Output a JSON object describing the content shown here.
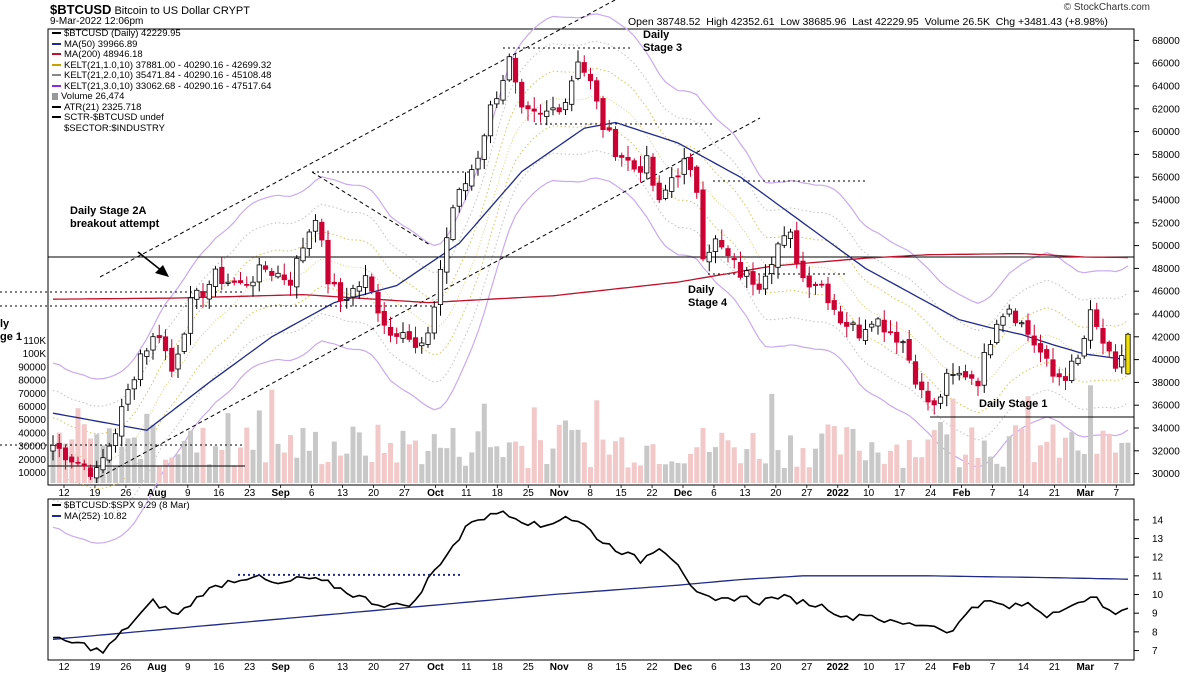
{
  "header": {
    "symbol": "$BTCUSD",
    "name": "Bitcoin to US Dollar",
    "exchange": "CRYPT",
    "date": "9-Mar-2022 12:06pm",
    "watermark": "© StockCharts.com",
    "quote": "Open 38748.52  High 42352.61  Low 38685.96  Last 42229.95  Volume 26.5K  Chg +3481.43 (+8.98%)"
  },
  "legend": [
    {
      "text": "$BTCUSD (Daily) 42229.95",
      "color": "#000000"
    },
    {
      "text": "MA(50) 39966.89",
      "color": "#1f2a8a"
    },
    {
      "text": "MA(200) 48946.18",
      "color": "#c0102a"
    },
    {
      "text": "KELT(21,1.0,10) 37881.00 - 40290.16 - 42699.32",
      "color": "#c8a000"
    },
    {
      "text": "KELT(21,2.0,10) 35471.84 - 40290.16 - 45108.48",
      "color": "#888888"
    },
    {
      "text": "KELT(21,3.0,10) 33062.68 - 40290.16 - 47517.64",
      "color": "#8a2be2"
    },
    {
      "text": "Volume 26,474",
      "color": "#999999"
    },
    {
      "text": "ATR(21) 2325.718",
      "color": "#000000"
    },
    {
      "text": "SCTR-$BTCUSD undef",
      "color": "#000000"
    },
    {
      "text": "$SECTOR:$INDUSTRY",
      "color": "#ffffff"
    }
  ],
  "annotations": {
    "stage2a": [
      "Daily Stage 2A",
      "breakout attempt"
    ],
    "stage3": [
      "Daily",
      "Stage 3"
    ],
    "stage4": [
      "Daily",
      "Stage 4"
    ],
    "stage1_right": "Daily Stage 1",
    "stage1_left": [
      "ly",
      "ge 1"
    ]
  },
  "lower_legend": [
    {
      "text": "$BTCUSD:$SPX 9.29 (8 Mar)",
      "color": "#000000"
    },
    {
      "text": "MA(252) 10.82",
      "color": "#1f2a8a"
    }
  ],
  "chart_data": {
    "type": "candlestick",
    "x_ticks": [
      "12",
      "19",
      "26",
      "Aug",
      "9",
      "16",
      "23",
      "Sep",
      "6",
      "13",
      "20",
      "27",
      "Oct",
      "11",
      "18",
      "25",
      "Nov",
      "8",
      "15",
      "22",
      "Dec",
      "6",
      "13",
      "20",
      "27",
      "2022",
      "10",
      "17",
      "24",
      "Feb",
      "7",
      "14",
      "21",
      "Mar",
      "7"
    ],
    "x_tick_months": [
      "Aug",
      "Sep",
      "Oct",
      "Nov",
      "Dec",
      "2022",
      "Feb",
      "Mar"
    ],
    "y_ticks": [
      30000,
      32000,
      34000,
      36000,
      38000,
      40000,
      42000,
      44000,
      46000,
      48000,
      50000,
      52000,
      54000,
      56000,
      58000,
      60000,
      62000,
      64000,
      66000,
      68000
    ],
    "ylim": [
      29000,
      69000
    ],
    "volume_ticks": [
      "110K",
      "100K",
      "90000",
      "80000",
      "70000",
      "60000",
      "50000",
      "40000",
      "30000",
      "20000",
      "10000"
    ],
    "close_anchors": [
      [
        0,
        32500
      ],
      [
        4,
        31000
      ],
      [
        7,
        30000
      ],
      [
        10,
        33800
      ],
      [
        14,
        40500
      ],
      [
        17,
        42400
      ],
      [
        19,
        39000
      ],
      [
        22,
        44800
      ],
      [
        26,
        47300
      ],
      [
        30,
        46500
      ],
      [
        34,
        48000
      ],
      [
        38,
        47000
      ],
      [
        40,
        50000
      ],
      [
        42,
        52800
      ],
      [
        44,
        47000
      ],
      [
        46,
        45200
      ],
      [
        50,
        47000
      ],
      [
        54,
        42200
      ],
      [
        56,
        43000
      ],
      [
        58,
        40800
      ],
      [
        60,
        41700
      ],
      [
        62,
        48000
      ],
      [
        64,
        53400
      ],
      [
        66,
        55500
      ],
      [
        68,
        58000
      ],
      [
        70,
        62000
      ],
      [
        73,
        66200
      ],
      [
        75,
        61500
      ],
      [
        78,
        61200
      ],
      [
        82,
        62800
      ],
      [
        84,
        66500
      ],
      [
        86,
        64200
      ],
      [
        88,
        60500
      ],
      [
        90,
        58500
      ],
      [
        93,
        56800
      ],
      [
        95,
        57200
      ],
      [
        97,
        53500
      ],
      [
        99,
        56000
      ],
      [
        101,
        57200
      ],
      [
        103,
        55000
      ],
      [
        104,
        49500
      ],
      [
        106,
        50300
      ],
      [
        108,
        48900
      ],
      [
        110,
        47600
      ],
      [
        113,
        46800
      ],
      [
        116,
        50100
      ],
      [
        118,
        50700
      ],
      [
        120,
        47200
      ],
      [
        123,
        46600
      ],
      [
        126,
        43600
      ],
      [
        129,
        42400
      ],
      [
        131,
        43800
      ],
      [
        133,
        43000
      ],
      [
        136,
        41600
      ],
      [
        139,
        37000
      ],
      [
        141,
        35700
      ],
      [
        143,
        38200
      ],
      [
        146,
        38800
      ],
      [
        148,
        38300
      ],
      [
        151,
        43700
      ],
      [
        153,
        44700
      ],
      [
        156,
        42300
      ],
      [
        158,
        40600
      ],
      [
        160,
        38500
      ],
      [
        162,
        38700
      ],
      [
        164,
        39900
      ],
      [
        166,
        43800
      ],
      [
        168,
        41500
      ],
      [
        170,
        38700
      ],
      [
        172,
        42230
      ]
    ],
    "ma50_anchors": [
      [
        0,
        35300
      ],
      [
        15,
        33800
      ],
      [
        25,
        38000
      ],
      [
        35,
        42000
      ],
      [
        45,
        45000
      ],
      [
        55,
        46500
      ],
      [
        65,
        50200
      ],
      [
        75,
        56500
      ],
      [
        85,
        60300
      ],
      [
        90,
        60800
      ],
      [
        100,
        59000
      ],
      [
        110,
        56000
      ],
      [
        120,
        52000
      ],
      [
        130,
        48000
      ],
      [
        140,
        45000
      ],
      [
        145,
        43500
      ],
      [
        150,
        42800
      ],
      [
        155,
        42200
      ],
      [
        160,
        41300
      ],
      [
        165,
        40500
      ],
      [
        172,
        39970
      ]
    ],
    "ma200_anchors": [
      [
        0,
        45300
      ],
      [
        20,
        45400
      ],
      [
        40,
        45700
      ],
      [
        60,
        45000
      ],
      [
        80,
        45600
      ],
      [
        100,
        46800
      ],
      [
        115,
        48200
      ],
      [
        130,
        48900
      ],
      [
        140,
        49200
      ],
      [
        155,
        49300
      ],
      [
        165,
        49000
      ],
      [
        172,
        48950
      ]
    ],
    "ratio": {
      "label": "$BTCUSD:$SPX",
      "y_ticks": [
        7,
        8,
        9,
        10,
        11,
        12,
        13,
        14
      ],
      "ylim": [
        6.6,
        14.9
      ],
      "anchors": [
        [
          0,
          7.6
        ],
        [
          5,
          7.3
        ],
        [
          8,
          6.9
        ],
        [
          12,
          8.3
        ],
        [
          16,
          9.6
        ],
        [
          20,
          8.9
        ],
        [
          24,
          10.1
        ],
        [
          28,
          10.7
        ],
        [
          32,
          11.0
        ],
        [
          36,
          10.5
        ],
        [
          40,
          10.9
        ],
        [
          44,
          10.6
        ],
        [
          48,
          10.0
        ],
        [
          52,
          9.5
        ],
        [
          55,
          9.4
        ],
        [
          58,
          9.6
        ],
        [
          60,
          10.8
        ],
        [
          63,
          12.2
        ],
        [
          65,
          13.0
        ],
        [
          67,
          14.0
        ],
        [
          70,
          14.2
        ],
        [
          72,
          14.5
        ],
        [
          75,
          14.0
        ],
        [
          78,
          13.6
        ],
        [
          82,
          14.2
        ],
        [
          85,
          13.7
        ],
        [
          88,
          12.8
        ],
        [
          91,
          12.3
        ],
        [
          94,
          11.8
        ],
        [
          97,
          12.6
        ],
        [
          100,
          11.7
        ],
        [
          103,
          10.0
        ],
        [
          106,
          9.6
        ],
        [
          110,
          9.9
        ],
        [
          113,
          9.6
        ],
        [
          116,
          9.9
        ],
        [
          120,
          9.6
        ],
        [
          124,
          9.3
        ],
        [
          127,
          8.7
        ],
        [
          130,
          9.0
        ],
        [
          134,
          8.5
        ],
        [
          137,
          8.4
        ],
        [
          140,
          8.4
        ],
        [
          144,
          8.0
        ],
        [
          147,
          9.4
        ],
        [
          150,
          9.6
        ],
        [
          153,
          9.3
        ],
        [
          156,
          9.5
        ],
        [
          159,
          8.9
        ],
        [
          162,
          9.4
        ],
        [
          165,
          9.5
        ],
        [
          167,
          10.0
        ],
        [
          169,
          9.0
        ],
        [
          171,
          9.0
        ],
        [
          172,
          9.3
        ]
      ],
      "ma_anchors": [
        [
          0,
          7.6
        ],
        [
          40,
          8.8
        ],
        [
          80,
          10.0
        ],
        [
          100,
          10.5
        ],
        [
          110,
          10.8
        ],
        [
          120,
          11.0
        ],
        [
          140,
          11.0
        ],
        [
          160,
          10.9
        ],
        [
          172,
          10.82
        ]
      ]
    }
  },
  "colors": {
    "up_candle": "#000000",
    "down_candle": "#cc0033",
    "last_candle": "#f2e000",
    "kelt1": "#d8c060",
    "kelt2": "#c0c0c0",
    "kelt3": "#c9a9f0",
    "volume_up": "#c8c8c8",
    "volume_down": "#f2c8c8"
  }
}
